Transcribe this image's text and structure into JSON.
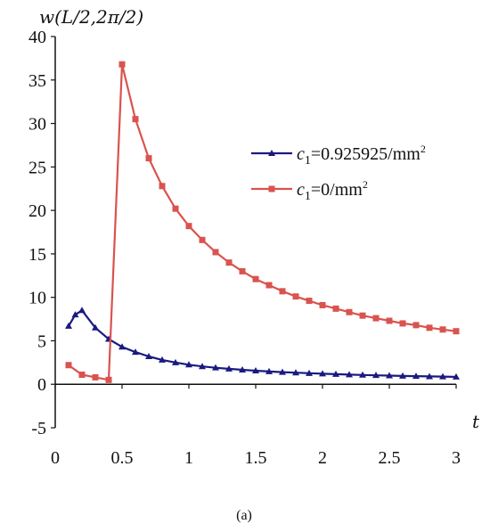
{
  "chart_data": {
    "type": "line",
    "title": "",
    "ylabel": "w(L/2,2π/2)",
    "xlabel": "t",
    "caption": "(a)",
    "xlim": [
      0,
      3
    ],
    "ylim": [
      -5,
      40
    ],
    "xticks": [
      "0",
      "0.5",
      "1",
      "1.5",
      "2",
      "2.5",
      "3"
    ],
    "yticks": [
      "-5",
      "0",
      "5",
      "10",
      "15",
      "20",
      "25",
      "30",
      "35",
      "40"
    ],
    "grid": false,
    "legend_position": "right",
    "series": [
      {
        "name_symbol": "c",
        "name_sub": "1",
        "name_value": "=0.925925/mm",
        "name_sup": "2",
        "color": "#1a1a80",
        "marker": "triangle",
        "x": [
          0.1,
          0.15,
          0.2,
          0.3,
          0.4,
          0.5,
          0.6,
          0.7,
          0.8,
          0.9,
          1.0,
          1.1,
          1.2,
          1.3,
          1.4,
          1.5,
          1.6,
          1.7,
          1.8,
          1.9,
          2.0,
          2.1,
          2.2,
          2.3,
          2.4,
          2.5,
          2.6,
          2.7,
          2.8,
          2.9,
          3.0
        ],
        "y": [
          6.7,
          8.0,
          8.5,
          6.5,
          5.2,
          4.3,
          3.7,
          3.2,
          2.8,
          2.5,
          2.25,
          2.05,
          1.9,
          1.78,
          1.66,
          1.56,
          1.47,
          1.4,
          1.33,
          1.27,
          1.21,
          1.16,
          1.11,
          1.07,
          1.03,
          1.0,
          0.96,
          0.93,
          0.9,
          0.88,
          0.85
        ]
      },
      {
        "name_symbol": "c",
        "name_sub": "1",
        "name_value": "=0/mm",
        "name_sup": "2",
        "color": "#d9534f",
        "marker": "square",
        "x": [
          0.1,
          0.2,
          0.3,
          0.4,
          0.5,
          0.6,
          0.7,
          0.8,
          0.9,
          1.0,
          1.1,
          1.2,
          1.3,
          1.4,
          1.5,
          1.6,
          1.7,
          1.8,
          1.9,
          2.0,
          2.1,
          2.2,
          2.3,
          2.4,
          2.5,
          2.6,
          2.7,
          2.8,
          2.9,
          3.0
        ],
        "y": [
          2.2,
          1.1,
          0.8,
          0.5,
          36.8,
          30.5,
          26.0,
          22.8,
          20.2,
          18.2,
          16.6,
          15.2,
          14.0,
          13.0,
          12.1,
          11.4,
          10.7,
          10.1,
          9.6,
          9.1,
          8.7,
          8.3,
          7.9,
          7.6,
          7.3,
          7.0,
          6.8,
          6.5,
          6.3,
          6.1
        ]
      }
    ]
  }
}
